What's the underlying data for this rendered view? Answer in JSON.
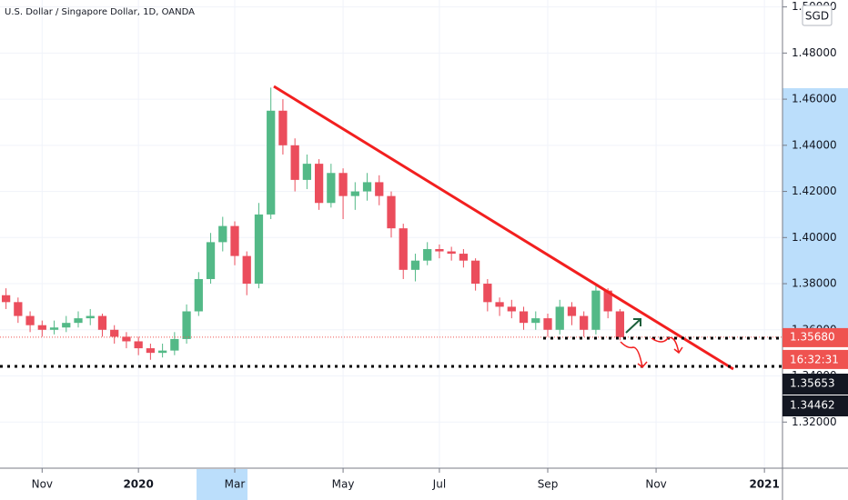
{
  "chart_data": {
    "type": "candlestick",
    "title": "U.S. Dollar / Singapore Dollar, 1D, OANDA",
    "currency": "SGD",
    "categories": [
      null,
      null,
      null,
      "Nov",
      null,
      null,
      null,
      null,
      null,
      null,
      null,
      "2020",
      null,
      null,
      null,
      null,
      null,
      null,
      null,
      "Mar",
      null,
      null,
      null,
      null,
      null,
      null,
      null,
      null,
      "May",
      null,
      null,
      null,
      null,
      null,
      null,
      null,
      "Jul",
      null,
      null,
      null,
      null,
      null,
      null,
      null,
      null,
      "Sep",
      null,
      null,
      null,
      null,
      null,
      null,
      null,
      null,
      "Nov",
      null,
      null,
      null,
      null,
      null,
      null,
      null,
      null,
      "2021",
      null
    ],
    "open": [
      1.375,
      1.372,
      1.366,
      1.362,
      1.36,
      1.361,
      1.363,
      1.365,
      1.366,
      1.36,
      1.357,
      1.355,
      1.352,
      1.35,
      1.351,
      1.356,
      1.368,
      1.382,
      1.398,
      1.405,
      1.392,
      1.38,
      1.41,
      1.455,
      1.44,
      1.425,
      1.432,
      1.415,
      1.428,
      1.418,
      1.42,
      1.424,
      1.418,
      1.404,
      1.386,
      1.39,
      1.395,
      1.394,
      1.393,
      1.39,
      1.38,
      1.372,
      1.37,
      1.368,
      1.363,
      1.365,
      1.36,
      1.37,
      1.366,
      1.36,
      1.377,
      1.368,
      null,
      null,
      null,
      null,
      null,
      null,
      null,
      null,
      null,
      null,
      null,
      null,
      null
    ],
    "high": [
      1.378,
      1.374,
      1.368,
      1.364,
      1.364,
      1.366,
      1.368,
      1.369,
      1.367,
      1.362,
      1.359,
      1.357,
      1.354,
      1.354,
      1.359,
      1.371,
      1.385,
      1.402,
      1.409,
      1.407,
      1.394,
      1.415,
      1.465,
      1.46,
      1.443,
      1.436,
      1.434,
      1.432,
      1.43,
      1.424,
      1.428,
      1.427,
      1.42,
      1.406,
      1.393,
      1.398,
      1.397,
      1.396,
      1.395,
      1.391,
      1.382,
      1.374,
      1.373,
      1.37,
      1.368,
      1.367,
      1.373,
      1.372,
      1.368,
      1.38,
      1.378,
      1.369,
      null,
      null,
      null,
      null,
      null,
      null,
      null,
      null,
      null,
      null,
      null,
      null,
      null
    ],
    "low": [
      1.369,
      1.363,
      1.359,
      1.357,
      1.358,
      1.359,
      1.361,
      1.362,
      1.357,
      1.354,
      1.352,
      1.349,
      1.347,
      1.348,
      1.349,
      1.354,
      1.366,
      1.38,
      1.394,
      1.388,
      1.375,
      1.378,
      1.408,
      1.436,
      1.42,
      1.421,
      1.412,
      1.413,
      1.408,
      1.412,
      1.416,
      1.414,
      1.4,
      1.382,
      1.381,
      1.388,
      1.391,
      1.39,
      1.387,
      1.377,
      1.368,
      1.366,
      1.365,
      1.36,
      1.36,
      1.357,
      1.358,
      1.362,
      1.357,
      1.358,
      1.365,
      1.3555,
      null,
      null,
      null,
      null,
      null,
      null,
      null,
      null,
      null,
      null,
      null,
      null,
      null
    ],
    "close": [
      1.372,
      1.366,
      1.362,
      1.36,
      1.361,
      1.363,
      1.365,
      1.366,
      1.36,
      1.357,
      1.355,
      1.352,
      1.35,
      1.351,
      1.356,
      1.368,
      1.382,
      1.398,
      1.405,
      1.392,
      1.38,
      1.41,
      1.455,
      1.44,
      1.425,
      1.432,
      1.415,
      1.428,
      1.418,
      1.42,
      1.424,
      1.418,
      1.404,
      1.386,
      1.39,
      1.395,
      1.394,
      1.393,
      1.39,
      1.38,
      1.372,
      1.37,
      1.368,
      1.363,
      1.365,
      1.36,
      1.37,
      1.366,
      1.36,
      1.377,
      1.368,
      1.3568,
      null,
      null,
      null,
      null,
      null,
      null,
      null,
      null,
      null,
      null,
      null,
      null,
      null
    ],
    "up_color": "#53b987",
    "down_color": "#eb4d5c",
    "ylim": [
      1.3,
      1.503
    ],
    "yticks": [
      {
        "value": 1.32,
        "label": "1.32000"
      },
      {
        "value": 1.34,
        "label": "1.34000"
      },
      {
        "value": 1.36,
        "label": "1.36000"
      },
      {
        "value": 1.38,
        "label": "1.38000"
      },
      {
        "value": 1.4,
        "label": "1.40000"
      },
      {
        "value": 1.42,
        "label": "1.42000"
      },
      {
        "value": 1.44,
        "label": "1.44000"
      },
      {
        "value": 1.46,
        "label": "1.46000"
      },
      {
        "value": 1.48,
        "label": "1.48000"
      },
      {
        "value": 1.5,
        "label": "1.50000"
      }
    ],
    "grid": true,
    "current_price": {
      "value": 1.3568,
      "label": "1.35680",
      "color": "#ef5350"
    },
    "countdown": "16:32:31",
    "price_tags": [
      1.35653,
      1.34462
    ]
  }
}
